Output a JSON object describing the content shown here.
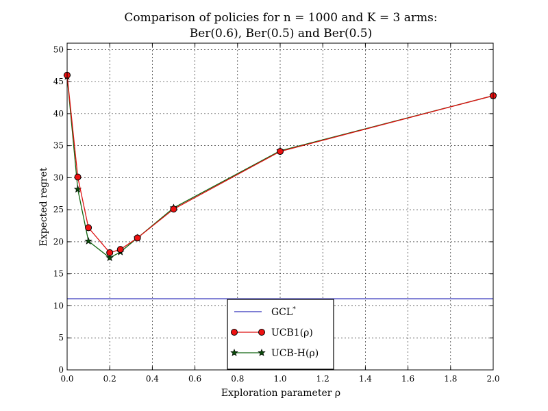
{
  "chart_data": {
    "type": "line",
    "title": "Comparison of policies for n = 1000 and K = 3 arms:",
    "subtitle": "Ber(0.6), Ber(0.5) and Ber(0.5)",
    "xlabel": "Exploration parameter ρ",
    "ylabel": "Expected regret",
    "xlim": [
      0.0,
      2.0
    ],
    "ylim": [
      0,
      51
    ],
    "xticks": [
      "0.0",
      "0.2",
      "0.4",
      "0.6",
      "0.8",
      "1.0",
      "1.2",
      "1.4",
      "1.6",
      "1.8",
      "2.0"
    ],
    "yticks": [
      "0",
      "5",
      "10",
      "15",
      "20",
      "25",
      "30",
      "35",
      "40",
      "45",
      "50"
    ],
    "grid": true,
    "legend_position": "lower-center",
    "series": [
      {
        "name": "GCL*",
        "legend_label": "GCL",
        "legend_sup": "*",
        "kind": "hline",
        "color": "#3333bb",
        "y": 11.1
      },
      {
        "name": "UCB1(ρ)",
        "legend_label": "UCB1(ρ)",
        "kind": "line",
        "marker": "circle",
        "color": "#dd1111",
        "marker_color": "#ee1111",
        "x": [
          0.0,
          0.05,
          0.1,
          0.2,
          0.25,
          0.33,
          0.5,
          1.0,
          2.0
        ],
        "y": [
          46.0,
          30.1,
          22.2,
          18.3,
          18.8,
          20.6,
          25.1,
          34.1,
          42.8
        ]
      },
      {
        "name": "UCB-H(ρ)",
        "legend_label": "UCB-H(ρ)",
        "kind": "line",
        "marker": "star",
        "color": "#116611",
        "marker_color": "#0a4a0a",
        "x": [
          0.0,
          0.05,
          0.1,
          0.2,
          0.25,
          0.33,
          0.5,
          1.0,
          2.0
        ],
        "y": [
          45.8,
          28.2,
          20.1,
          17.5,
          18.4,
          20.6,
          25.3,
          34.2,
          42.8
        ]
      }
    ]
  }
}
